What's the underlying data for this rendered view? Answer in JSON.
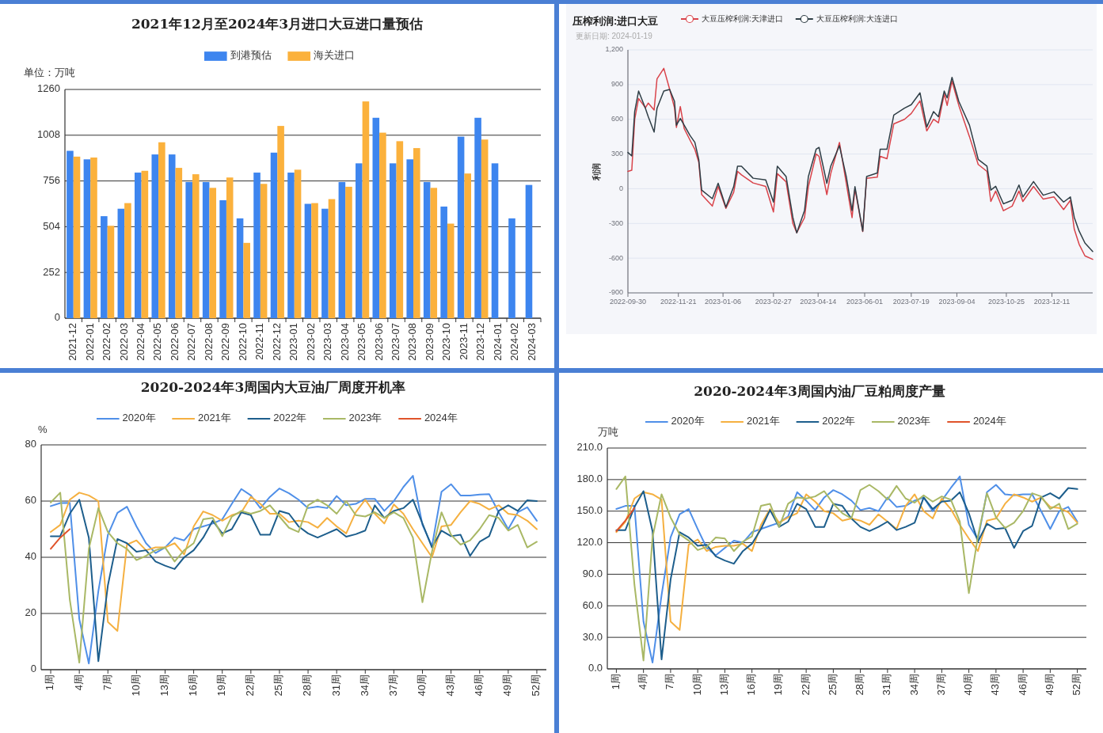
{
  "chart_data": [
    {
      "type": "bar",
      "title": "2021年12月至2024年3月进口大豆进口量预估",
      "ylabel": "单位：万吨",
      "categories": [
        "2021-12",
        "2022-01",
        "2022-02",
        "2022-03",
        "2022-04",
        "2022-05",
        "2022-06",
        "2022-07",
        "2022-08",
        "2022-09",
        "2022-10",
        "2022-11",
        "2022-12",
        "2023-01",
        "2023-02",
        "2023-03",
        "2023-04",
        "2023-05",
        "2023-06",
        "2023-07",
        "2023-08",
        "2023-09",
        "2023-10",
        "2023-11",
        "2023-12",
        "2024-01",
        "2024-02",
        "2024-03"
      ],
      "series": [
        {
          "name": "到港预估",
          "color": "#3d85ef",
          "values": [
            922,
            875,
            562,
            603,
            802,
            902,
            902,
            750,
            750,
            650,
            550,
            802,
            912,
            802,
            630,
            603,
            750,
            853,
            1104,
            853,
            875,
            750,
            615,
            1000,
            1104,
            853,
            550,
            734
          ]
        },
        {
          "name": "海关进口",
          "color": "#fbb13c",
          "values": [
            890,
            885,
            509,
            634,
            812,
            969,
            828,
            793,
            718,
            775,
            415,
            740,
            1059,
            818,
            634,
            656,
            724,
            1194,
            1022,
            975,
            937,
            718,
            521,
            797,
            984,
            null,
            null,
            null
          ]
        }
      ],
      "ylim": [
        0,
        1260
      ],
      "yticks": [
        0,
        252,
        504,
        756,
        1008,
        1260
      ],
      "grid": "y",
      "legend": "top"
    },
    {
      "type": "line",
      "title": "压榨利润:进口大豆",
      "subtitle": "更新日期: 2024-01-19",
      "ylabel": "利润",
      "x": [
        "2022-09-30",
        "2022-10-04",
        "2022-10-07",
        "2022-10-11",
        "2022-10-18",
        "2022-10-21",
        "2022-10-27",
        "2022-10-30",
        "2022-11-06",
        "2022-11-12",
        "2022-11-17",
        "2022-11-19",
        "2022-11-23",
        "2022-11-27",
        "2022-12-03",
        "2022-12-08",
        "2022-12-12",
        "2022-12-15",
        "2022-12-26",
        "2023-01-01",
        "2023-01-09",
        "2023-01-17",
        "2023-01-21",
        "2023-01-25",
        "2023-02-06",
        "2023-02-19",
        "2023-02-27",
        "2023-03-03",
        "2023-03-12",
        "2023-03-19",
        "2023-03-23",
        "2023-03-31",
        "2023-04-04",
        "2023-04-12",
        "2023-04-15",
        "2023-04-23",
        "2023-04-27",
        "2023-05-06",
        "2023-05-13",
        "2023-05-19",
        "2023-05-22",
        "2023-05-30",
        "2023-06-03",
        "2023-06-14",
        "2023-06-17",
        "2023-06-24",
        "2023-07-01",
        "2023-07-12",
        "2023-07-19",
        "2023-07-28",
        "2023-08-04",
        "2023-08-11",
        "2023-08-16",
        "2023-08-22",
        "2023-08-25",
        "2023-08-30",
        "2023-09-06",
        "2023-09-17",
        "2023-09-26",
        "2023-10-05",
        "2023-10-09",
        "2023-10-14",
        "2023-10-22",
        "2023-10-31",
        "2023-11-07",
        "2023-11-11",
        "2023-11-22",
        "2023-12-02",
        "2023-12-13",
        "2023-12-23",
        "2023-12-30",
        "2024-01-03",
        "2024-01-08",
        "2024-01-14",
        "2024-01-22"
      ],
      "series": [
        {
          "name": "大豆压榨利润:天津进口",
          "color": "#d9434a",
          "values": [
            150,
            160,
            600,
            780,
            700,
            740,
            680,
            950,
            1040,
            860,
            700,
            530,
            710,
            520,
            420,
            340,
            230,
            -50,
            -150,
            20,
            -170,
            -30,
            150,
            120,
            50,
            20,
            -200,
            130,
            60,
            -300,
            -380,
            -250,
            20,
            300,
            280,
            -50,
            130,
            400,
            50,
            -250,
            0,
            -370,
            90,
            100,
            280,
            260,
            560,
            600,
            650,
            760,
            500,
            600,
            570,
            820,
            720,
            930,
            720,
            450,
            210,
            150,
            -110,
            -20,
            -190,
            -150,
            -20,
            -110,
            20,
            -90,
            -70,
            -180,
            -100,
            -350,
            -480,
            -580,
            -610
          ]
        },
        {
          "name": "大豆压榨利润:大连进口",
          "color": "#2f3e46",
          "values": [
            313,
            283,
            667,
            844,
            696,
            622,
            490,
            696,
            844,
            858,
            755,
            549,
            608,
            549,
            460,
            401,
            254,
            -12,
            -86,
            47,
            -159,
            18,
            195,
            195,
            91,
            77,
            -115,
            195,
            106,
            -248,
            -381,
            -189,
            106,
            342,
            357,
            47,
            195,
            372,
            106,
            -189,
            18,
            -366,
            106,
            136,
            342,
            342,
            637,
            696,
            726,
            829,
            534,
            667,
            622,
            844,
            785,
            962,
            755,
            549,
            254,
            195,
            -12,
            21,
            -130,
            -100,
            32,
            -71,
            62,
            -56,
            -27,
            -115,
            -71,
            -248,
            -366,
            -469,
            -543
          ]
        }
      ],
      "xlim": [
        "2022-09-30",
        "2024-01-22"
      ],
      "xticks": [
        "2022-09-30",
        "2022-11-21",
        "2023-01-06",
        "2023-02-27",
        "2023-04-14",
        "2023-06-01",
        "2023-07-19",
        "2023-09-04",
        "2023-10-25",
        "2023-12-11"
      ],
      "ylim": [
        -900,
        1200
      ],
      "yticks": [
        {
          "value": 1200,
          "label": "1,200"
        },
        900,
        600,
        300,
        0,
        -300,
        -600,
        -900
      ],
      "grid": "y",
      "legend": "top"
    },
    {
      "type": "line",
      "title": "2020-2024年3周国内大豆油厂周度开机率",
      "ylabel": "%",
      "x": [
        1,
        2,
        3,
        4,
        5,
        6,
        7,
        8,
        9,
        10,
        11,
        12,
        13,
        14,
        15,
        16,
        17,
        18,
        19,
        20,
        21,
        22,
        23,
        24,
        25,
        26,
        27,
        28,
        29,
        30,
        31,
        32,
        33,
        34,
        35,
        36,
        37,
        38,
        39,
        40,
        41,
        42,
        43,
        44,
        45,
        46,
        47,
        48,
        49,
        50,
        51,
        52
      ],
      "series": [
        {
          "name": "2020年",
          "color": "#4f8fe8",
          "values": [
            58.2,
            59.3,
            59.4,
            18,
            2.2,
            28,
            48,
            55.8,
            58,
            51,
            45,
            41.5,
            43.5,
            47,
            46,
            50,
            51,
            52,
            53.5,
            59,
            64.3,
            62,
            57.5,
            61.5,
            64.5,
            62.8,
            60.5,
            57.5,
            58,
            57.5,
            61.8,
            58.5,
            59,
            60.8,
            60.8,
            56.5,
            60,
            65,
            69,
            51.5,
            44,
            63.3,
            66,
            62,
            62,
            62.3,
            62.5,
            56,
            50,
            56,
            57.8,
            53
          ]
        },
        {
          "name": "2021年",
          "color": "#f5b040",
          "values": [
            49,
            51.5,
            60.5,
            63,
            62,
            60,
            17,
            13.8,
            44.5,
            46,
            42.5,
            43.5,
            43.5,
            45,
            41,
            51,
            56.3,
            55,
            53,
            55,
            56,
            61.5,
            59,
            55.5,
            55.5,
            52.5,
            53,
            52.5,
            50.5,
            54,
            51,
            48.5,
            56,
            60.5,
            55.5,
            52,
            58.8,
            55.5,
            50,
            45,
            40,
            51,
            51.5,
            56,
            60,
            59,
            57,
            58.5,
            55.5,
            55,
            53,
            50
          ]
        },
        {
          "name": "2022年",
          "color": "#1d5e8c",
          "values": [
            47.5,
            47.5,
            55.5,
            60.5,
            47,
            3,
            30,
            46.5,
            45,
            42,
            42.5,
            38.5,
            37,
            35.8,
            40,
            42.5,
            47,
            53,
            48.5,
            50,
            56,
            55,
            48,
            48,
            56.5,
            55.5,
            51,
            48.5,
            47,
            48.5,
            50,
            47.3,
            48.2,
            49.5,
            58.5,
            54,
            56.5,
            57.5,
            60.5,
            52,
            43.5,
            49.5,
            47.5,
            48,
            40.5,
            45.5,
            47.5,
            56.5,
            58.5,
            56.5,
            60.3,
            60
          ]
        },
        {
          "name": "2023年",
          "color": "#a9b865",
          "values": [
            59.5,
            63,
            25,
            2.5,
            43,
            57.5,
            49,
            45,
            43,
            39,
            40.5,
            42.5,
            43.5,
            38.5,
            42.5,
            45,
            53.5,
            54,
            47.5,
            54.5,
            56.5,
            55.5,
            56.5,
            58.5,
            54.5,
            50.5,
            49,
            58.5,
            60.5,
            58.5,
            55.5,
            60,
            55,
            54.5,
            56,
            54,
            56,
            54,
            47,
            24,
            42,
            56,
            48,
            44.5,
            46,
            50,
            55,
            54,
            49.5,
            51.5,
            43.5,
            45.5
          ]
        },
        {
          "name": "2024年",
          "color": "#e0532a",
          "x": [
            1,
            2,
            3
          ],
          "values": [
            43,
            47,
            50
          ]
        }
      ],
      "xlim": [
        0,
        53
      ],
      "xticks": [
        {
          "value": 1,
          "label": "1周"
        },
        {
          "value": 4,
          "label": "4周"
        },
        {
          "value": 7,
          "label": "7周"
        },
        {
          "value": 10,
          "label": "10周"
        },
        {
          "value": 13,
          "label": "13周"
        },
        {
          "value": 16,
          "label": "16周"
        },
        {
          "value": 19,
          "label": "19周"
        },
        {
          "value": 22,
          "label": "22周"
        },
        {
          "value": 25,
          "label": "25周"
        },
        {
          "value": 28,
          "label": "28周"
        },
        {
          "value": 31,
          "label": "31周"
        },
        {
          "value": 34,
          "label": "34周"
        },
        {
          "value": 37,
          "label": "37周"
        },
        {
          "value": 40,
          "label": "40周"
        },
        {
          "value": 43,
          "label": "43周"
        },
        {
          "value": 46,
          "label": "46周"
        },
        {
          "value": 49,
          "label": "49周"
        },
        {
          "value": 52,
          "label": "52周"
        }
      ],
      "ylim": [
        0,
        80
      ],
      "yticks": [
        0,
        20,
        40,
        60,
        80
      ],
      "grid": "y",
      "legend": "top"
    },
    {
      "type": "line",
      "title": "2020-2024年3周国内油厂豆粕周度产量",
      "ylabel": "万吨",
      "x": [
        1,
        2,
        3,
        4,
        5,
        6,
        7,
        8,
        9,
        10,
        11,
        12,
        13,
        14,
        15,
        16,
        17,
        18,
        19,
        20,
        21,
        22,
        23,
        24,
        25,
        26,
        27,
        28,
        29,
        30,
        31,
        32,
        33,
        34,
        35,
        36,
        37,
        38,
        39,
        40,
        41,
        42,
        43,
        44,
        45,
        46,
        47,
        48,
        49,
        50,
        51,
        52
      ],
      "series": [
        {
          "name": "2020年",
          "color": "#4f8fe8",
          "values": [
            152,
            155,
            155,
            45,
            6,
            70,
            125,
            147,
            152,
            133,
            115,
            108,
            115,
            122,
            120,
            130,
            133,
            136,
            139,
            145,
            168,
            160,
            151,
            163,
            170,
            166,
            160,
            151,
            153,
            150,
            163,
            154,
            155,
            160,
            163,
            150,
            160,
            172,
            183,
            137,
            123,
            168,
            175,
            166,
            165,
            166,
            166,
            150,
            133,
            150,
            154,
            140
          ]
        },
        {
          "name": "2021年",
          "color": "#f5b040",
          "values": [
            130,
            140,
            162,
            168,
            166,
            161,
            45,
            37,
            118,
            123,
            112,
            116,
            117,
            117,
            119,
            112,
            137,
            152,
            139,
            144,
            148,
            166,
            159,
            150,
            148,
            141,
            143,
            141,
            137,
            147,
            140,
            133,
            155,
            166,
            150,
            143,
            162,
            152,
            137,
            124,
            112,
            141,
            143,
            157,
            166,
            163,
            159,
            163,
            154,
            153,
            149,
            139
          ]
        },
        {
          "name": "2022年",
          "color": "#1d5e8c",
          "values": [
            132,
            132,
            154,
            169,
            131,
            9,
            85,
            130,
            125,
            117,
            118,
            107,
            103,
            100,
            112,
            119,
            133,
            151,
            135,
            140,
            157,
            152,
            135,
            135,
            157,
            155,
            143,
            135,
            131,
            135,
            140,
            132,
            135,
            139,
            163,
            152,
            159,
            160,
            168,
            148,
            121,
            138,
            133,
            134,
            115,
            131,
            136,
            163,
            167,
            162,
            172,
            171
          ]
        },
        {
          "name": "2023年",
          "color": "#a9b865",
          "values": [
            171,
            183,
            80,
            8,
            125,
            166,
            144,
            128,
            122,
            113,
            116,
            125,
            124,
            112,
            121,
            126,
            155,
            157,
            135,
            157,
            163,
            162,
            164,
            169,
            157,
            148,
            143,
            170,
            175,
            169,
            161,
            174,
            162,
            158,
            165,
            159,
            164,
            161,
            140,
            72,
            126,
            167,
            144,
            134,
            139,
            150,
            167,
            164,
            152,
            157,
            133,
            138
          ]
        },
        {
          "name": "2024年",
          "color": "#e0532a",
          "x": [
            1,
            2,
            3
          ],
          "values": [
            131,
            141,
            153
          ]
        }
      ],
      "xlim": [
        0,
        53
      ],
      "xticks": [
        {
          "value": 1,
          "label": "1周"
        },
        {
          "value": 4,
          "label": "4周"
        },
        {
          "value": 7,
          "label": "7周"
        },
        {
          "value": 10,
          "label": "10周"
        },
        {
          "value": 13,
          "label": "13周"
        },
        {
          "value": 16,
          "label": "16周"
        },
        {
          "value": 19,
          "label": "19周"
        },
        {
          "value": 22,
          "label": "22周"
        },
        {
          "value": 25,
          "label": "25周"
        },
        {
          "value": 28,
          "label": "28周"
        },
        {
          "value": 31,
          "label": "31周"
        },
        {
          "value": 34,
          "label": "34周"
        },
        {
          "value": 37,
          "label": "37周"
        },
        {
          "value": 40,
          "label": "40周"
        },
        {
          "value": 43,
          "label": "43周"
        },
        {
          "value": 46,
          "label": "46周"
        },
        {
          "value": 49,
          "label": "49周"
        },
        {
          "value": 52,
          "label": "52周"
        }
      ],
      "ylim": [
        0,
        210
      ],
      "yticks": [
        {
          "value": 0,
          "label": "0.0"
        },
        {
          "value": 30,
          "label": "30.0"
        },
        {
          "value": 60,
          "label": "60.0"
        },
        {
          "value": 90,
          "label": "90.0"
        },
        {
          "value": 120,
          "label": "120.0"
        },
        {
          "value": 150,
          "label": "150.0"
        },
        {
          "value": 180,
          "label": "180.0"
        },
        {
          "value": 210,
          "label": "210.0"
        }
      ],
      "grid": "y",
      "legend": "top"
    }
  ]
}
